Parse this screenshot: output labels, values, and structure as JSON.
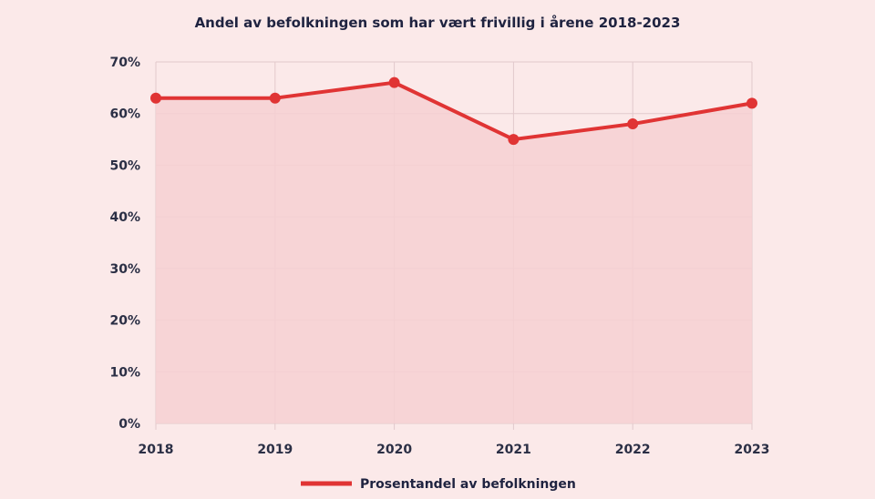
{
  "chart_data": {
    "type": "area",
    "title": "Andel av befolkningen som har vært frivillig i årene 2018-2023",
    "xlabel": "",
    "ylabel": "",
    "categories": [
      "2018",
      "2019",
      "2020",
      "2021",
      "2022",
      "2023"
    ],
    "series": [
      {
        "name": "Prosentandel av befolkningen",
        "values": [
          63,
          63,
          66,
          55,
          58,
          62
        ],
        "color": "#e03434",
        "fill": "#f6d0d2"
      }
    ],
    "ylim": [
      0,
      70
    ],
    "yticks": [
      0,
      10,
      20,
      30,
      40,
      50,
      60,
      70
    ],
    "ytick_labels": [
      "0%",
      "10%",
      "20%",
      "30%",
      "40%",
      "50%",
      "60%",
      "70%"
    ],
    "grid": true,
    "legend_position": "bottom-center"
  }
}
